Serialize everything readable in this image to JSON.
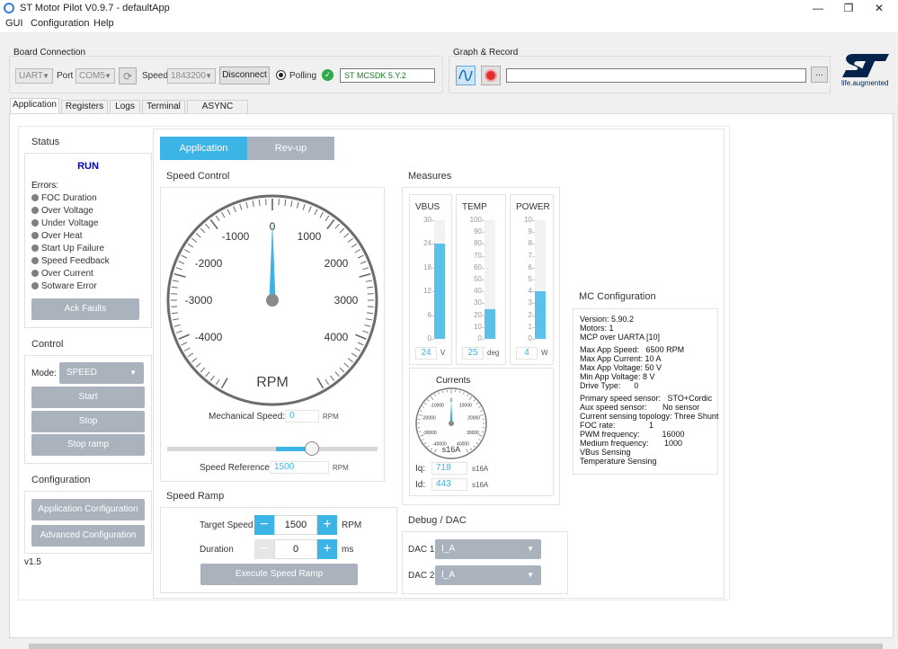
{
  "window": {
    "title": "ST Motor Pilot V0.9.7 - defaultApp"
  },
  "menu": [
    "GUI",
    "Configuration",
    "Help"
  ],
  "board_connection": {
    "title": "Board Connection",
    "protocol": "UART",
    "port_label": "Port",
    "port": "COM5",
    "speed_label": "Speed",
    "speed": "1843200",
    "disconnect_label": "Disconnect",
    "polling_label": "Polling",
    "firmware": "ST MCSDK 5.Y.2"
  },
  "graph_record": {
    "title": "Graph & Record",
    "browse_label": "..."
  },
  "logo": {
    "tagline": "life.augmented"
  },
  "tabs": [
    "Application",
    "Registers",
    "Logs",
    "Terminal",
    "ASYNC Config"
  ],
  "status": {
    "title": "Status",
    "state": "RUN",
    "errors_label": "Errors:",
    "errors": [
      "FOC Duration",
      "Over Voltage",
      "Under Voltage",
      "Over Heat",
      "Start Up Failure",
      "Speed Feedback",
      "Over Current",
      "Sotware Error"
    ],
    "ack_label": "Ack Faults"
  },
  "control": {
    "title": "Control",
    "mode_label": "Mode:",
    "mode": "SPEED",
    "start": "Start",
    "stop": "Stop",
    "stop_ramp": "Stop ramp"
  },
  "configuration": {
    "title": "Configuration",
    "app_config": "Application Configuration",
    "adv_config": "Advanced Configuration"
  },
  "version": "v1.5",
  "subtabs": [
    "Application",
    "Rev-up"
  ],
  "speed_control": {
    "title": "Speed Control",
    "gauge_labels": [
      "-4000",
      "-3000",
      "-2000",
      "-1000",
      "0",
      "1000",
      "2000",
      "3000",
      "4000"
    ],
    "unit": "RPM",
    "value": 0,
    "mech_speed_label": "Mechanical Speed:",
    "mech_speed": "0",
    "mech_unit": "RPM",
    "slider_value": 1500,
    "speed_ref_label": "Speed Reference:",
    "speed_ref": "1500",
    "speed_ref_unit": "RPM"
  },
  "speed_ramp": {
    "title": "Speed Ramp",
    "target_label": "Target Speed",
    "target": "1500",
    "target_unit": "RPM",
    "duration_label": "Duration",
    "duration": "0",
    "duration_unit": "ms",
    "execute_label": "Execute Speed Ramp"
  },
  "measures": {
    "title": "Measures",
    "vbus": {
      "title": "VBUS",
      "ticks": [
        "0",
        "6",
        "12",
        "18",
        "24",
        "30"
      ],
      "value": "24",
      "unit": "V",
      "max": 30
    },
    "temp": {
      "title": "TEMP",
      "ticks": [
        "0",
        "10",
        "20",
        "30",
        "40",
        "50",
        "60",
        "70",
        "80",
        "90",
        "100"
      ],
      "value": "25",
      "unit": "deg",
      "max": 100
    },
    "power": {
      "title": "POWER",
      "ticks": [
        "0",
        "1",
        "2",
        "3",
        "4",
        "5",
        "6",
        "7",
        "8",
        "9",
        "10"
      ],
      "value": "4",
      "unit": "W",
      "max": 10
    }
  },
  "currents": {
    "title": "Currents",
    "labels": [
      "-40000",
      "-30000",
      "-20000",
      "-10000",
      "0",
      "10000",
      "20000",
      "30000",
      "40000"
    ],
    "unit": "s16A",
    "iq_label": "Iq:",
    "iq": "718",
    "iq_unit": "s16A",
    "id_label": "Id:",
    "id": "443",
    "id_unit": "s16A"
  },
  "debug": {
    "title": "Debug / DAC",
    "dac1_label": "DAC 1",
    "dac1": "I_A",
    "dac2_label": "DAC 2",
    "dac2": "I_A"
  },
  "mc_config": {
    "title": "MC Configuration",
    "lines": [
      "Version: 5.90.2",
      "Motors: 1",
      "MCP over UARTA [10]",
      "Max App Speed:   6500 RPM",
      "Max App Current: 10 A",
      "Max App Voltage: 50 V",
      "Min App Voltage: 8 V",
      "Drive Type:      0",
      "Primary speed sensor:   STO+Cordic",
      "Aux speed sensor:       No sensor",
      "Current sensing topology: Three Shunt",
      "FOC rate:               1",
      "PWM frequency:          16000",
      "Medium frequency:       1000",
      "VBus Sensing",
      "Temperature Sensing"
    ]
  },
  "colors": {
    "accent": "#3cb4e5",
    "run": "#0000cc",
    "button_gray": "#aab2bd",
    "st_blue": "#03234b"
  }
}
